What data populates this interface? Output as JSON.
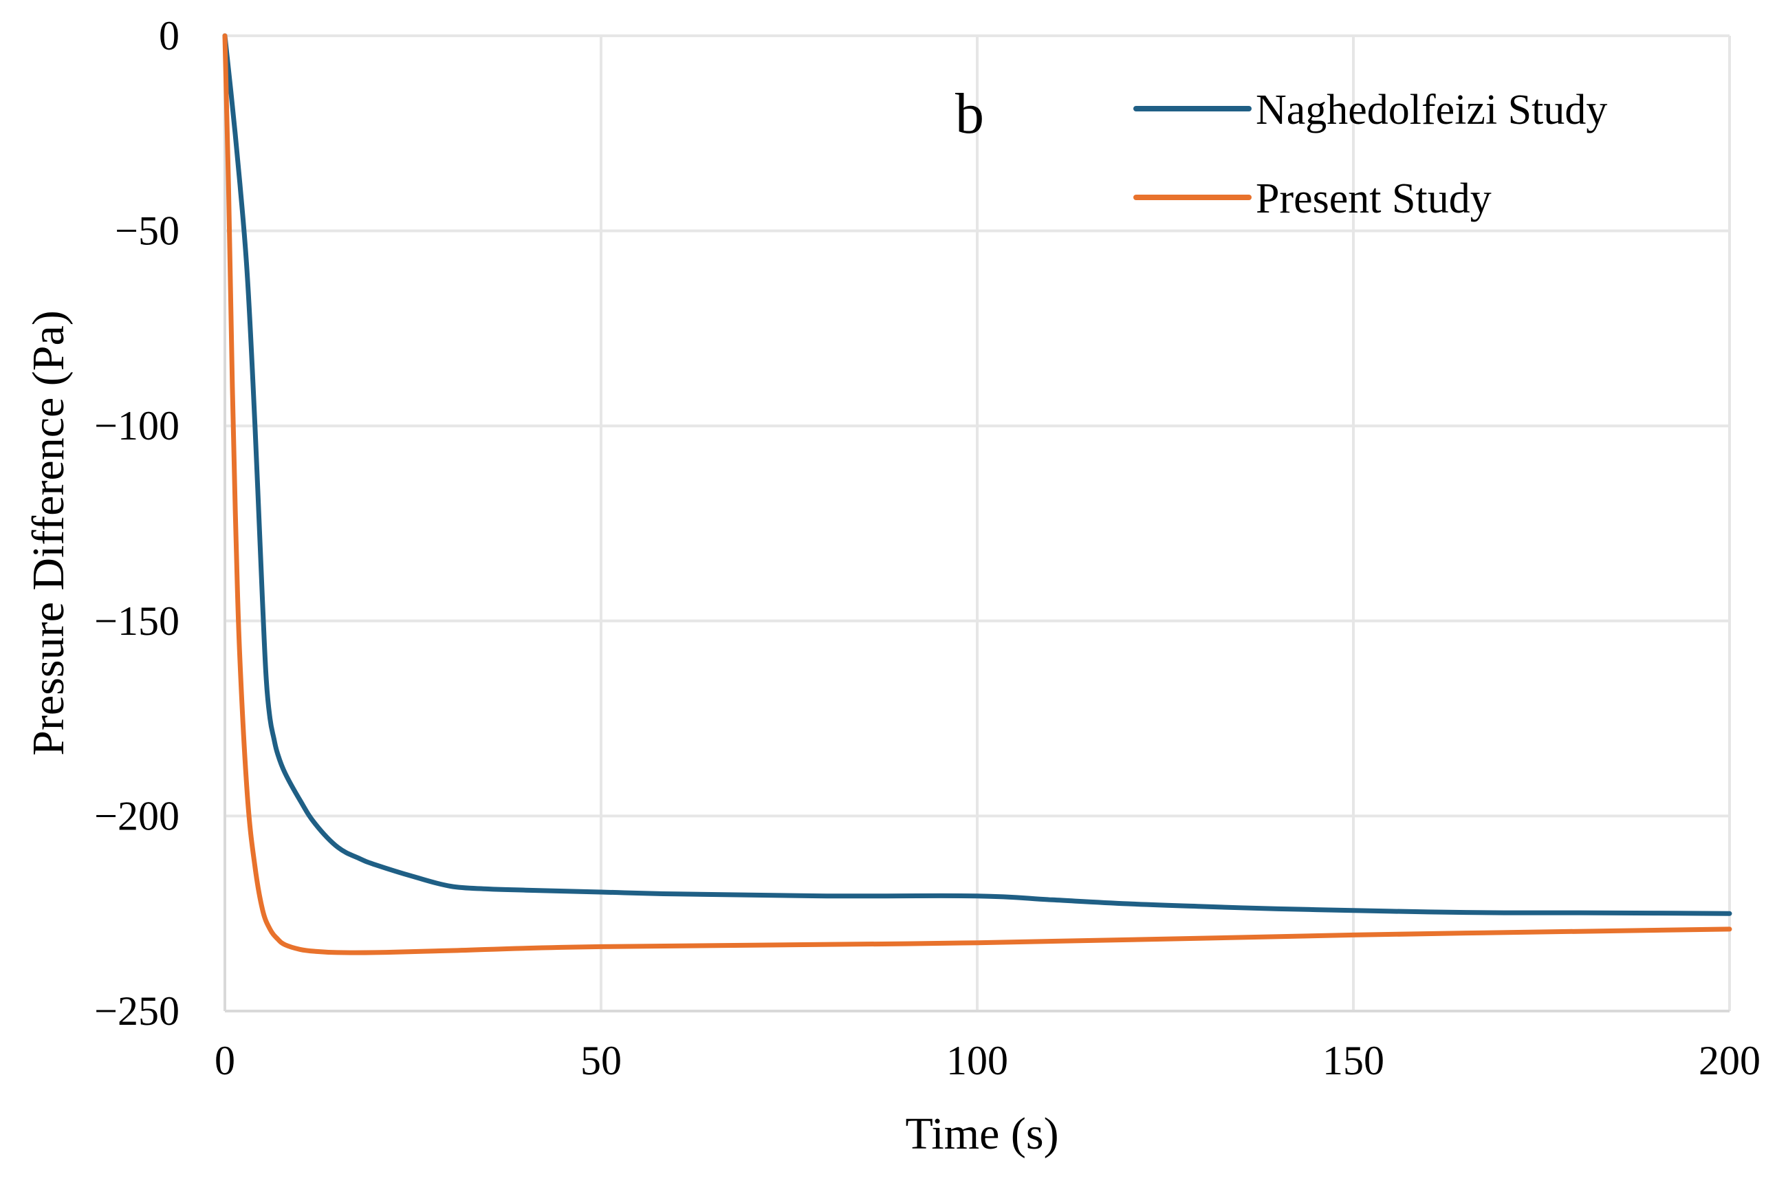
{
  "chart_data": {
    "type": "line",
    "panel_label": "b",
    "title": "",
    "xlabel": "Time (s)",
    "ylabel": "Pressure Difference (Pa)",
    "xlim": [
      0,
      200
    ],
    "ylim": [
      -250,
      0
    ],
    "xticks": [
      0,
      50,
      100,
      150,
      200
    ],
    "xtick_labels": [
      "0",
      "50",
      "100",
      "150",
      "200"
    ],
    "yticks": [
      0,
      -50,
      -100,
      -150,
      -200,
      -250
    ],
    "ytick_labels": [
      "0",
      "−50",
      "−100",
      "−150",
      "−200",
      "−250"
    ],
    "grid": true,
    "legend_position": "top-right",
    "series": [
      {
        "name": "Naghedolfeizi Study",
        "color": "#1f5f85",
        "x": [
          0,
          1,
          2,
          3,
          4,
          5,
          5.5,
          6,
          6.5,
          7,
          8,
          10,
          12,
          15,
          18,
          20,
          25,
          30,
          35,
          40,
          50,
          60,
          80,
          100,
          110,
          120,
          130,
          140,
          150,
          160,
          170,
          180,
          190,
          200
        ],
        "y": [
          0,
          -18,
          -38,
          -62,
          -100,
          -145,
          -165,
          -175,
          -180,
          -184,
          -189,
          -196,
          -202,
          -208,
          -211,
          -212.5,
          -215.5,
          -218,
          -218.7,
          -219,
          -219.5,
          -220,
          -220.5,
          -220.5,
          -221.5,
          -222.5,
          -223.2,
          -223.8,
          -224.2,
          -224.6,
          -224.8,
          -224.8,
          -224.9,
          -225
        ]
      },
      {
        "name": "Present Study",
        "color": "#e8722c",
        "x": [
          0,
          0.5,
          1,
          1.5,
          2,
          3,
          4,
          5,
          6,
          7,
          8,
          10,
          12,
          15,
          20,
          30,
          50,
          100,
          150,
          200
        ],
        "y": [
          0,
          -40,
          -90,
          -130,
          -160,
          -195,
          -213,
          -224,
          -229,
          -231.5,
          -233,
          -234.2,
          -234.7,
          -235,
          -235,
          -234.5,
          -233.5,
          -232.5,
          -230.5,
          -229
        ]
      }
    ]
  }
}
